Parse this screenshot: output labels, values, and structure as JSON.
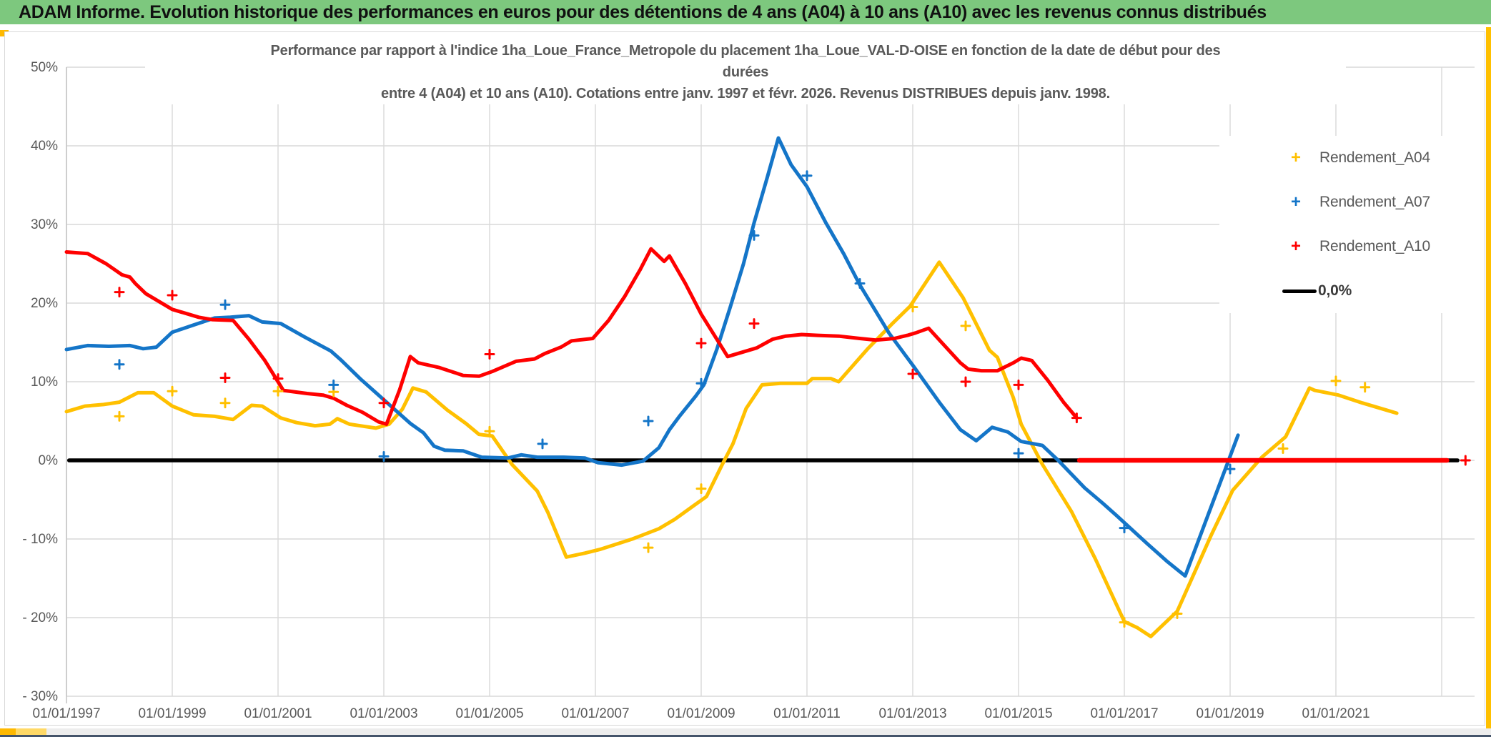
{
  "header": {
    "title": "ADAM Informe. Evolution historique des performances en euros pour des détentions de 4 ans (A04) à 10 ans (A10) avec les revenus connus distribués",
    "bg_color": "#7dc87e"
  },
  "chart_data": {
    "type": "scatter",
    "title_lines": [
      "Performance par rapport à l'indice 1ha_Loue_France_Metropole  du placement 1ha_Loue_VAL-D-OISE en fonction de la date de début pour des",
      "durées",
      "entre 4 (A04) et 10 ans (A10). Cotations entre janv. 1997 et févr. 2026. Revenus DISTRIBUES depuis janv. 1998."
    ],
    "grid_on": true,
    "grid_color": "#d9d9d9",
    "axis_text_color": "#595959",
    "ylim": [
      -30,
      50
    ],
    "xlabel": "",
    "ylabel": "",
    "y_axis": {
      "ticks": [
        {
          "v": 50,
          "label": "50%"
        },
        {
          "v": 40,
          "label": "40%"
        },
        {
          "v": 30,
          "label": "30%"
        },
        {
          "v": 20,
          "label": "20%"
        },
        {
          "v": 10,
          "label": "10%"
        },
        {
          "v": 0,
          "label": "0%"
        },
        {
          "v": -10,
          "label": "- 10%"
        },
        {
          "v": -20,
          "label": "- 20%"
        },
        {
          "v": -30,
          "label": "- 30%"
        }
      ]
    },
    "x_axis": {
      "grid_years": [
        1997,
        1999,
        2001,
        2003,
        2005,
        2007,
        2009,
        2011,
        2013,
        2015,
        2017,
        2019,
        2021,
        2023
      ],
      "ticks": [
        {
          "year": 1997,
          "label": "01/01/1997"
        },
        {
          "year": 1999,
          "label": "01/01/1999"
        },
        {
          "year": 2001,
          "label": "01/01/2001"
        },
        {
          "year": 2003,
          "label": "01/01/2003"
        },
        {
          "year": 2005,
          "label": "01/01/2005"
        },
        {
          "year": 2007,
          "label": "01/01/2007"
        },
        {
          "year": 2009,
          "label": "01/01/2009"
        },
        {
          "year": 2011,
          "label": "01/01/2011"
        },
        {
          "year": 2013,
          "label": "01/01/2013"
        },
        {
          "year": 2015,
          "label": "01/01/2015"
        },
        {
          "year": 2017,
          "label": "01/01/2017"
        },
        {
          "year": 2019,
          "label": "01/01/2019"
        },
        {
          "year": 2021,
          "label": "01/01/2021"
        }
      ]
    },
    "series": [
      {
        "name": "Rendement_A04",
        "color": "#ffc000",
        "points": [
          [
            1997.0,
            6.2
          ],
          [
            1997.35,
            6.9
          ],
          [
            1997.7,
            7.1
          ],
          [
            1998.0,
            7.4
          ],
          [
            1998.35,
            8.6
          ],
          [
            1998.65,
            8.6
          ],
          [
            1999.0,
            6.9
          ],
          [
            1999.4,
            5.8
          ],
          [
            1999.8,
            5.6
          ],
          [
            2000.15,
            5.2
          ],
          [
            2000.5,
            7.0
          ],
          [
            2000.7,
            6.9
          ],
          [
            2001.05,
            5.4
          ],
          [
            2001.35,
            4.8
          ],
          [
            2001.7,
            4.4
          ],
          [
            2001.98,
            4.6
          ],
          [
            2002.12,
            5.3
          ],
          [
            2002.35,
            4.6
          ],
          [
            2002.85,
            4.1
          ],
          [
            2003.1,
            4.6
          ],
          [
            2003.35,
            6.5
          ],
          [
            2003.55,
            9.2
          ],
          [
            2003.8,
            8.7
          ],
          [
            2004.2,
            6.4
          ],
          [
            2004.55,
            4.7
          ],
          [
            2004.8,
            3.3
          ],
          [
            2005.05,
            3.1
          ],
          [
            2005.42,
            -0.5
          ],
          [
            2005.9,
            -3.9
          ],
          [
            2006.1,
            -6.6
          ],
          [
            2006.45,
            -12.3
          ],
          [
            2006.8,
            -11.8
          ],
          [
            2007.1,
            -11.3
          ],
          [
            2007.7,
            -10.0
          ],
          [
            2008.2,
            -8.7
          ],
          [
            2008.5,
            -7.5
          ],
          [
            2008.85,
            -5.8
          ],
          [
            2009.1,
            -4.6
          ],
          [
            2009.4,
            -0.5
          ],
          [
            2009.6,
            2.1
          ],
          [
            2009.85,
            6.6
          ],
          [
            2010.15,
            9.6
          ],
          [
            2010.5,
            9.8
          ],
          [
            2011.0,
            9.8
          ],
          [
            2011.1,
            10.4
          ],
          [
            2011.45,
            10.4
          ],
          [
            2011.6,
            10.0
          ],
          [
            2012.15,
            14.2
          ],
          [
            2012.6,
            17.3
          ],
          [
            2012.95,
            19.6
          ],
          [
            2013.5,
            25.2
          ],
          [
            2013.95,
            20.7
          ],
          [
            2014.45,
            14.0
          ],
          [
            2014.6,
            13.1
          ],
          [
            2014.9,
            8.0
          ],
          [
            2015.05,
            4.6
          ],
          [
            2015.45,
            -0.5
          ],
          [
            2016.0,
            -6.5
          ],
          [
            2016.45,
            -12.5
          ],
          [
            2017.0,
            -20.5
          ],
          [
            2017.25,
            -21.3
          ],
          [
            2017.5,
            -22.4
          ],
          [
            2018.0,
            -19.2
          ],
          [
            2018.65,
            -9.4
          ],
          [
            2019.05,
            -3.8
          ],
          [
            2019.6,
            0.4
          ],
          [
            2020.05,
            3.0
          ],
          [
            2020.5,
            9.2
          ],
          [
            2020.6,
            8.9
          ],
          [
            2021.05,
            8.3
          ],
          [
            2021.5,
            7.3
          ],
          [
            2022.0,
            6.3
          ],
          [
            2022.15,
            6.0
          ]
        ],
        "outliers": [
          [
            1998.0,
            5.6
          ],
          [
            1999.0,
            8.8
          ],
          [
            2000.0,
            7.3
          ],
          [
            2001.0,
            8.8
          ],
          [
            2002.05,
            8.7
          ],
          [
            2005.0,
            3.7
          ],
          [
            2008.0,
            -11.1
          ],
          [
            2009.0,
            -3.6
          ],
          [
            2013.0,
            19.5
          ],
          [
            2014.0,
            17.1
          ],
          [
            2017.0,
            -20.6
          ],
          [
            2018.0,
            -19.5
          ],
          [
            2020.0,
            1.5
          ],
          [
            2021.0,
            10.1
          ],
          [
            2021.55,
            9.3
          ]
        ]
      },
      {
        "name": "Rendement_A07",
        "color": "#1475c8",
        "points": [
          [
            1997.0,
            14.1
          ],
          [
            1997.4,
            14.6
          ],
          [
            1997.8,
            14.5
          ],
          [
            1998.2,
            14.6
          ],
          [
            1998.45,
            14.2
          ],
          [
            1998.7,
            14.4
          ],
          [
            1999.0,
            16.3
          ],
          [
            1999.4,
            17.2
          ],
          [
            1999.8,
            18.1
          ],
          [
            2000.1,
            18.2
          ],
          [
            2000.45,
            18.4
          ],
          [
            2000.7,
            17.6
          ],
          [
            2001.05,
            17.4
          ],
          [
            2001.5,
            15.7
          ],
          [
            2002.0,
            13.9
          ],
          [
            2002.2,
            12.7
          ],
          [
            2002.55,
            10.4
          ],
          [
            2002.85,
            8.6
          ],
          [
            2003.2,
            6.5
          ],
          [
            2003.5,
            4.7
          ],
          [
            2003.75,
            3.5
          ],
          [
            2003.95,
            1.8
          ],
          [
            2004.15,
            1.3
          ],
          [
            2004.5,
            1.2
          ],
          [
            2004.85,
            0.4
          ],
          [
            2005.35,
            0.3
          ],
          [
            2005.6,
            0.7
          ],
          [
            2005.9,
            0.4
          ],
          [
            2006.4,
            0.4
          ],
          [
            2006.8,
            0.3
          ],
          [
            2007.05,
            -0.3
          ],
          [
            2007.5,
            -0.6
          ],
          [
            2007.9,
            -0.1
          ],
          [
            2008.2,
            1.6
          ],
          [
            2008.4,
            3.9
          ],
          [
            2008.6,
            5.7
          ],
          [
            2008.9,
            8.2
          ],
          [
            2009.05,
            9.6
          ],
          [
            2009.3,
            14.2
          ],
          [
            2009.55,
            19.5
          ],
          [
            2009.8,
            25.0
          ],
          [
            2010.0,
            30.2
          ],
          [
            2010.25,
            36.0
          ],
          [
            2010.46,
            41.0
          ],
          [
            2010.7,
            37.6
          ],
          [
            2011.0,
            34.8
          ],
          [
            2011.35,
            30.3
          ],
          [
            2011.7,
            26.2
          ],
          [
            2012.0,
            22.3
          ],
          [
            2012.55,
            16.2
          ],
          [
            2013.0,
            12.1
          ],
          [
            2013.5,
            7.4
          ],
          [
            2013.9,
            3.9
          ],
          [
            2014.2,
            2.5
          ],
          [
            2014.5,
            4.2
          ],
          [
            2014.8,
            3.6
          ],
          [
            2015.05,
            2.4
          ],
          [
            2015.45,
            1.9
          ],
          [
            2015.75,
            0.0
          ],
          [
            2016.25,
            -3.5
          ],
          [
            2016.6,
            -5.5
          ],
          [
            2016.85,
            -7.0
          ],
          [
            2017.45,
            -10.7
          ],
          [
            2017.8,
            -12.8
          ],
          [
            2018.15,
            -14.7
          ],
          [
            2019.15,
            3.2
          ]
        ],
        "outliers": [
          [
            1998.0,
            12.2
          ],
          [
            2000.0,
            19.8
          ],
          [
            2002.05,
            9.6
          ],
          [
            2003.0,
            0.5
          ],
          [
            2006.0,
            2.1
          ],
          [
            2008.0,
            5.0
          ],
          [
            2009.0,
            9.8
          ],
          [
            2010.0,
            28.6
          ],
          [
            2011.0,
            36.2
          ],
          [
            2012.0,
            22.5
          ],
          [
            2015.0,
            0.9
          ],
          [
            2017.0,
            -8.6
          ],
          [
            2019.0,
            -1.1
          ]
        ]
      },
      {
        "name": "Rendement_A10",
        "color": "#ff0000",
        "points": [
          [
            1997.0,
            26.5
          ],
          [
            1997.4,
            26.3
          ],
          [
            1997.75,
            25.0
          ],
          [
            1998.05,
            23.6
          ],
          [
            1998.2,
            23.3
          ],
          [
            1998.3,
            22.5
          ],
          [
            1998.5,
            21.2
          ],
          [
            1999.0,
            19.2
          ],
          [
            1999.5,
            18.2
          ],
          [
            1999.75,
            17.9
          ],
          [
            2000.15,
            17.8
          ],
          [
            2000.45,
            15.4
          ],
          [
            2000.75,
            12.7
          ],
          [
            2001.1,
            8.9
          ],
          [
            2001.55,
            8.5
          ],
          [
            2001.85,
            8.3
          ],
          [
            2002.05,
            7.9
          ],
          [
            2002.3,
            7.0
          ],
          [
            2002.6,
            6.1
          ],
          [
            2002.9,
            4.9
          ],
          [
            2003.05,
            4.6
          ],
          [
            2003.3,
            9.0
          ],
          [
            2003.5,
            13.2
          ],
          [
            2003.65,
            12.4
          ],
          [
            2004.05,
            11.8
          ],
          [
            2004.5,
            10.8
          ],
          [
            2004.8,
            10.7
          ],
          [
            2005.05,
            11.3
          ],
          [
            2005.5,
            12.6
          ],
          [
            2005.85,
            12.9
          ],
          [
            2006.05,
            13.6
          ],
          [
            2006.35,
            14.4
          ],
          [
            2006.55,
            15.2
          ],
          [
            2006.95,
            15.5
          ],
          [
            2007.25,
            17.8
          ],
          [
            2007.55,
            20.8
          ],
          [
            2007.85,
            24.3
          ],
          [
            2008.05,
            26.9
          ],
          [
            2008.3,
            25.3
          ],
          [
            2008.4,
            26.0
          ],
          [
            2008.7,
            22.5
          ],
          [
            2009.0,
            18.6
          ],
          [
            2009.5,
            13.2
          ],
          [
            2010.05,
            14.3
          ],
          [
            2010.35,
            15.4
          ],
          [
            2010.6,
            15.8
          ],
          [
            2010.9,
            16.0
          ],
          [
            2011.2,
            15.9
          ],
          [
            2011.6,
            15.8
          ],
          [
            2012.0,
            15.5
          ],
          [
            2012.3,
            15.3
          ],
          [
            2012.65,
            15.5
          ],
          [
            2012.9,
            15.9
          ],
          [
            2013.05,
            16.2
          ],
          [
            2013.3,
            16.8
          ],
          [
            2013.6,
            14.6
          ],
          [
            2013.9,
            12.4
          ],
          [
            2014.05,
            11.6
          ],
          [
            2014.3,
            11.4
          ],
          [
            2014.6,
            11.4
          ],
          [
            2014.9,
            12.4
          ],
          [
            2015.05,
            13.0
          ],
          [
            2015.25,
            12.7
          ],
          [
            2015.55,
            10.2
          ],
          [
            2015.85,
            7.4
          ],
          [
            2016.1,
            5.4
          ]
        ],
        "outliers": [
          [
            1998.0,
            21.4
          ],
          [
            1999.0,
            21.0
          ],
          [
            2000.0,
            10.5
          ],
          [
            2001.0,
            10.4
          ],
          [
            2003.0,
            7.3
          ],
          [
            2005.0,
            13.5
          ],
          [
            2009.0,
            14.9
          ],
          [
            2010.0,
            17.4
          ],
          [
            2013.0,
            11.0
          ],
          [
            2014.0,
            10.0
          ],
          [
            2015.0,
            9.6
          ],
          [
            2016.1,
            5.4
          ],
          [
            2023.45,
            0.0
          ]
        ],
        "zero_line": {
          "from": 2016.15,
          "to": 2023.1
        }
      },
      {
        "name": "0,0%",
        "color": "#000000",
        "points": [
          [
            1997.05,
            0.0
          ],
          [
            2023.3,
            0.0
          ]
        ],
        "outliers": []
      }
    ],
    "legend": {
      "position": "right",
      "items": [
        {
          "label": "Rendement_A04",
          "color": "#ffc000",
          "marker": "plus"
        },
        {
          "label": "Rendement_A07",
          "color": "#1475c8",
          "marker": "plus"
        },
        {
          "label": "Rendement_A10",
          "color": "#ff0000",
          "marker": "plus"
        },
        {
          "label": "0,0%",
          "color": "#000000",
          "marker": "line"
        }
      ]
    }
  },
  "artifacts": {
    "right_strip_color": "#ffc000",
    "bottom_block1_color": "#ffb900",
    "bottom_block2_color": "#ffd966",
    "bottom_line_color": "#44546a"
  }
}
